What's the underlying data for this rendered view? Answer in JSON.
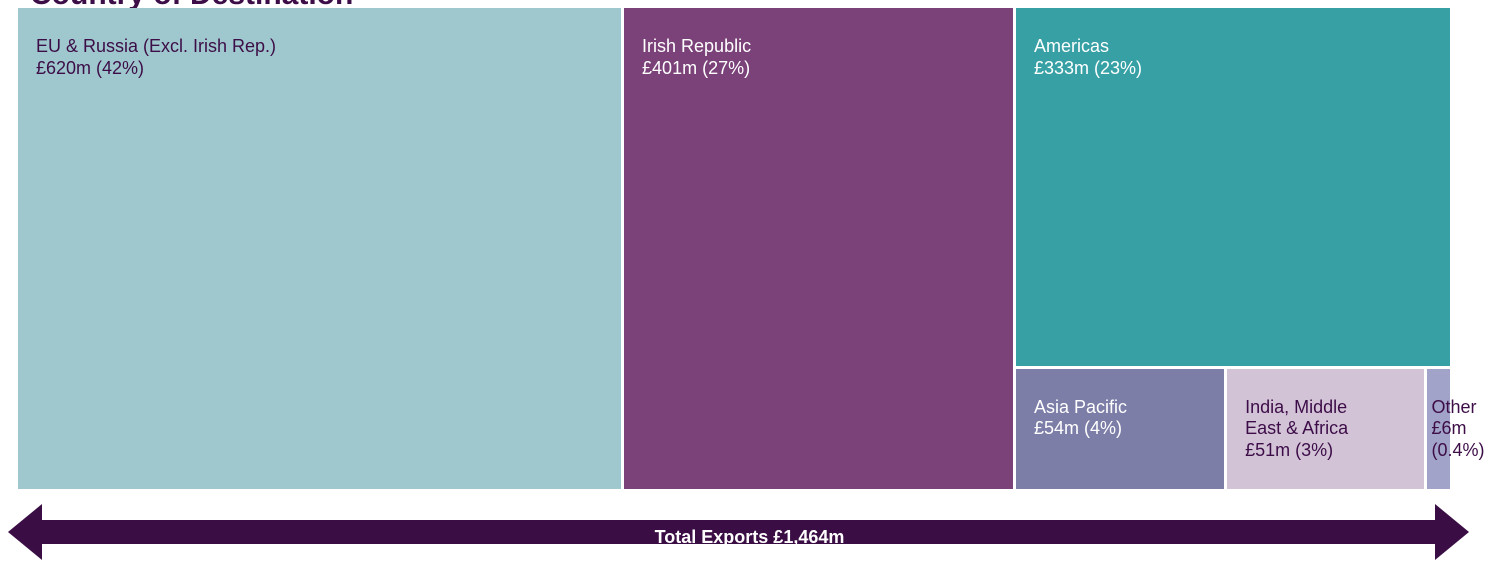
{
  "title": "Country of Destination",
  "chart_data": {
    "type": "treemap",
    "total_label": "Total Exports £1,464m",
    "total_value": 1464,
    "unit": "£m",
    "segments": [
      {
        "name": "EU & Russia (Excl. Irish Rep.)",
        "value": 620,
        "percent": 42,
        "lines": [
          "EU & Russia (Excl. Irish Rep.)",
          "£620m (42%)"
        ],
        "color": "#9ec8cd",
        "text_color": "#3d0d48"
      },
      {
        "name": "Irish Republic",
        "value": 401,
        "percent": 27,
        "lines": [
          "Irish Republic",
          "£401m (27%)"
        ],
        "color": "#7b4279",
        "text_color": "#ffffff"
      },
      {
        "name": "Americas",
        "value": 333,
        "percent": 23,
        "lines": [
          "Americas",
          "£333m (23%)"
        ],
        "color": "#36a0a5",
        "text_color": "#ffffff"
      },
      {
        "name": "Asia Pacific",
        "value": 54,
        "percent": 4,
        "lines": [
          "Asia Pacific",
          "£54m (4%)"
        ],
        "color": "#7d7ea8",
        "text_color": "#ffffff"
      },
      {
        "name": "India, Middle East & Africa",
        "value": 51,
        "percent": 3,
        "lines": [
          "India, Middle",
          "East & Africa",
          "£51m (3%)"
        ],
        "color": "#d2c3d7",
        "text_color": "#3d0d48"
      },
      {
        "name": "Other",
        "value": 6,
        "percent": 0.4,
        "lines": [
          "Other",
          "£6m",
          "(0.4%)"
        ],
        "color": "#a2a3c8",
        "text_color": "#3d0d48"
      }
    ],
    "arrow_color": "#3a0d44"
  }
}
